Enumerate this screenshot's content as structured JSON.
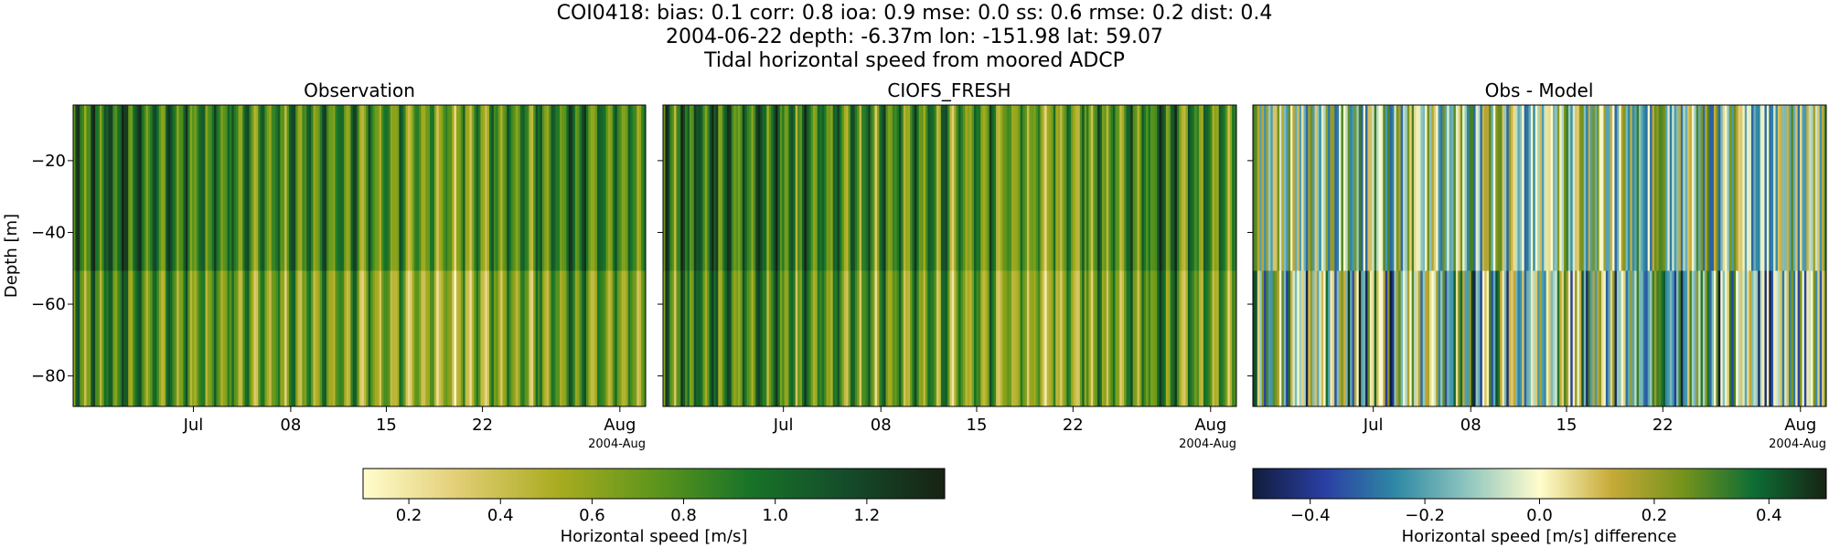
{
  "header": {
    "line1": "COI0418: bias: 0.1  corr: 0.8  ioa: 0.9  mse: 0.0  ss: 0.6  rmse: 0.2  dist: 0.4",
    "line2": "2004-06-22 depth: -6.37m lon: -151.98 lat: 59.07",
    "line3": "Tidal horizontal speed from moored ADCP"
  },
  "chart_data": [
    {
      "type": "heatmap",
      "title": "Observation",
      "ylabel": "Depth [m]",
      "x_ticks": [
        "Jul",
        "08",
        "15",
        "22",
        "Aug"
      ],
      "x_offset_label": "2004-Aug",
      "y_ticks": [
        -20,
        -40,
        -60,
        -80
      ],
      "ylim": [
        -88.5,
        -4.5
      ],
      "colorbar": {
        "label": "Horizontal speed [m/s]",
        "range": [
          0.1,
          1.37
        ],
        "ticks": [
          "0.2",
          "0.4",
          "0.6",
          "0.8",
          "1.0",
          "1.2"
        ],
        "colormap": "speed"
      }
    },
    {
      "type": "heatmap",
      "title": "CIOFS_FRESH",
      "x_ticks": [
        "Jul",
        "08",
        "15",
        "22",
        "Aug"
      ],
      "x_offset_label": "2004-Aug",
      "ylim": [
        -88.5,
        -4.5
      ],
      "colorbar": {
        "label": "Horizontal speed [m/s]",
        "range": [
          0.1,
          1.37
        ],
        "colormap": "speed"
      }
    },
    {
      "type": "heatmap",
      "title": "Obs - Model",
      "x_ticks": [
        "Jul",
        "08",
        "15",
        "22",
        "Aug"
      ],
      "x_offset_label": "2004-Aug",
      "ylim": [
        -88.5,
        -4.5
      ],
      "colorbar": {
        "label": "Horizontal speed [m/s] difference",
        "range": [
          -0.5,
          0.5
        ],
        "ticks": [
          "−0.4",
          "−0.2",
          "0.0",
          "0.2",
          "0.4"
        ],
        "colormap": "delta"
      }
    }
  ],
  "colors": {
    "speed": [
      "#fffdcd",
      "#e1cd73",
      "#aaac20",
      "#5f961c",
      "#187328",
      "#144b2a",
      "#172313"
    ],
    "delta": [
      "#111d3c",
      "#2a3fa3",
      "#2f89a5",
      "#90c6bf",
      "#fffdcd",
      "#c7aa38",
      "#75931c",
      "#0d6d34",
      "#172313"
    ]
  }
}
